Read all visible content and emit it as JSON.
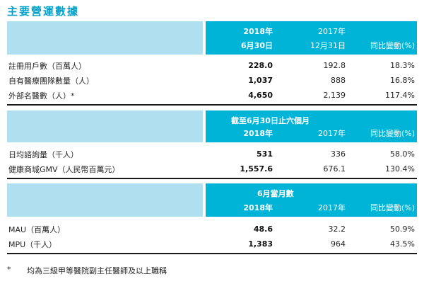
{
  "title": "主要營運數據",
  "colors": {
    "title_teal": "#00a0c8",
    "header_cyan": "#00b4d8",
    "header_light_blue": "#b0e0ef",
    "rule_black": "#1a1a1a",
    "text": "#262626"
  },
  "tables": [
    {
      "name": "key-operating-data-balance-dates",
      "header": {
        "period": "",
        "y2018_l1": "2018年",
        "y2018_l2": "6月30日",
        "y2017_l1": "2017年",
        "y2017_l2": "12月31日",
        "change": "同比變動(%)"
      },
      "rows": [
        {
          "label": "註冊用戶數（百萬人）",
          "v2018": "228.0",
          "v2017": "192.8",
          "change": "18.3%"
        },
        {
          "label": "自有醫療團隊數量（人）",
          "v2018": "1,037",
          "v2017": "888",
          "change": "16.8%"
        },
        {
          "label": "外部名醫數（人）*",
          "v2018": "4,650",
          "v2017": "2,139",
          "change": "117.4%"
        }
      ]
    },
    {
      "name": "six-months-ended-june-30",
      "header": {
        "period": "截至6月30日止六個月",
        "y2018": "2018年",
        "y2017": "2017年",
        "change": "同比變動(%)"
      },
      "rows": [
        {
          "label": "日均諮詢量（千人）",
          "v2018": "531",
          "v2017": "336",
          "change": "58.0%"
        },
        {
          "label": "健康商城GMV（人民幣百萬元）",
          "v2018": "1,557.6",
          "v2017": "676.1",
          "change": "130.4%"
        }
      ]
    },
    {
      "name": "june-monthly-figures",
      "header": {
        "period": "6月當月數",
        "y2018": "2018年",
        "y2017": "2017年",
        "change": "同比變動(%)"
      },
      "rows": [
        {
          "label": "MAU（百萬人）",
          "v2018": "48.6",
          "v2017": "32.2",
          "change": "50.9%"
        },
        {
          "label": "MPU（千人）",
          "v2018": "1,383",
          "v2017": "964",
          "change": "43.5%"
        }
      ]
    }
  ],
  "footnote": {
    "marker": "*",
    "text": "均為三級甲等醫院副主任醫師及以上職稱"
  }
}
